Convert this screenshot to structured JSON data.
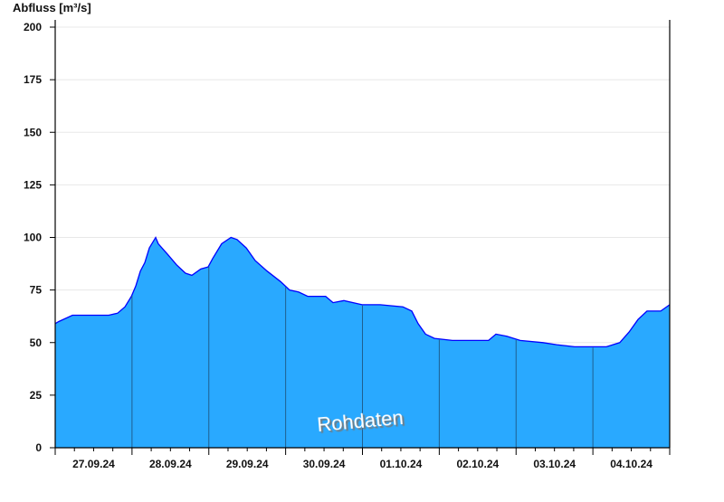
{
  "chart_data": {
    "type": "area",
    "title": "",
    "ylabel": "Abfluss [m³/s]",
    "xlabel": "",
    "ylim": [
      0,
      200
    ],
    "yticks": [
      0,
      25,
      50,
      75,
      100,
      125,
      150,
      175,
      200
    ],
    "x_unit": "hours since 27.09.24 00:00",
    "xlim": [
      0,
      192
    ],
    "day_labels": [
      "27.09.24",
      "28.09.24",
      "29.09.24",
      "30.09.24",
      "01.10.24",
      "02.10.24",
      "03.10.24",
      "04.10.24"
    ],
    "grid": "horizontal",
    "watermark": "Rohdaten",
    "colors": {
      "fill": "#29a9ff",
      "line": "#0000ff",
      "day_line": "#1f5f8f",
      "grid": "#e8e8e8"
    },
    "series": [
      {
        "name": "Abfluss",
        "x": [
          0,
          1.1,
          5.4,
          11,
          16.7,
          19.5,
          21.8,
          23.8,
          25.2,
          26.6,
          28,
          29.4,
          31.4,
          32.2,
          35.1,
          37.9,
          40.7,
          42.7,
          45.5,
          47.8,
          49.2,
          52,
          54.9,
          56.8,
          59.7,
          62.5,
          66.2,
          70.4,
          73.2,
          76.1,
          78.9,
          84.5,
          86.8,
          90.2,
          95.9,
          101.5,
          108.6,
          111.4,
          113.4,
          115.7,
          118.5,
          124.1,
          135.4,
          137.7,
          141.1,
          145.3,
          152.4,
          156.7,
          162.3,
          172.2,
          176.4,
          179.3,
          182.1,
          184.9,
          189.2,
          192
        ],
        "values": [
          59,
          60,
          63,
          63,
          63,
          64,
          67,
          72,
          77,
          84,
          88,
          95,
          100,
          97,
          92,
          87,
          83,
          82,
          85,
          86,
          90,
          97,
          100,
          99,
          95,
          89,
          84,
          79,
          75,
          74,
          72,
          72,
          69,
          70,
          68,
          68,
          67,
          65,
          59,
          54,
          52,
          51,
          51,
          54,
          53,
          51,
          50,
          49,
          48,
          48,
          50,
          55,
          61,
          65,
          65,
          68
        ]
      }
    ]
  }
}
